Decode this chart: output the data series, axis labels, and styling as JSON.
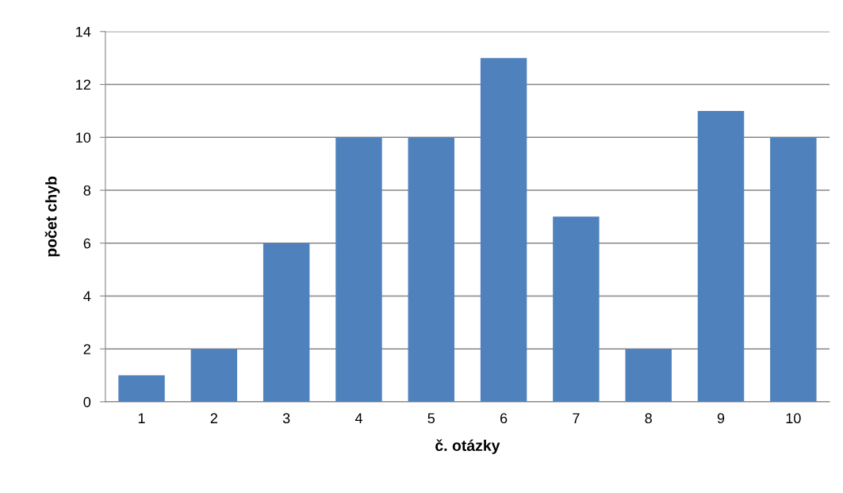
{
  "chart_data": {
    "type": "bar",
    "xlabel": "č. otázky",
    "ylabel": "počet chyb",
    "categories": [
      "1",
      "2",
      "3",
      "4",
      "5",
      "6",
      "7",
      "8",
      "9",
      "10"
    ],
    "values": [
      1,
      2,
      6,
      10,
      10,
      13,
      7,
      2,
      11,
      10
    ],
    "color": "#4f81bd",
    "ylim": [
      0,
      14
    ],
    "yticks": [
      0,
      2,
      4,
      6,
      8,
      10,
      12,
      14
    ],
    "grid": "y",
    "legend": false
  }
}
